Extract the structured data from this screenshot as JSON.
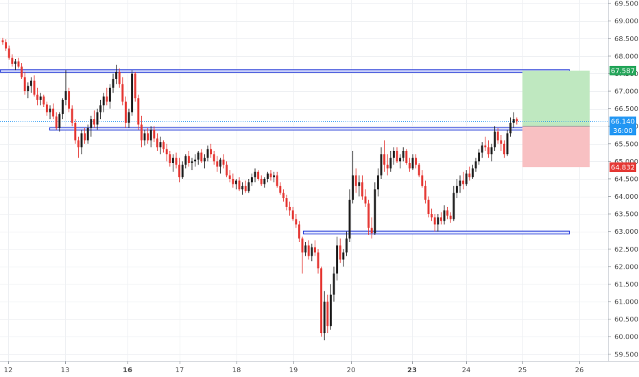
{
  "chart_data": {
    "type": "candlestick",
    "y_axis": {
      "min": 59.3,
      "max": 69.6,
      "side": "right",
      "ticks": [
        "59.500",
        "60.000",
        "60.500",
        "61.000",
        "61.500",
        "62.000",
        "62.500",
        "63.000",
        "63.500",
        "64.000",
        "64.500",
        "65.000",
        "65.500",
        "66.000",
        "66.500",
        "67.000",
        "67.500",
        "68.000",
        "68.500",
        "69.000",
        "69.500"
      ]
    },
    "x_axis": {
      "ticks": [
        {
          "label": "12",
          "bold": false
        },
        {
          "label": "13",
          "bold": false
        },
        {
          "label": "16",
          "bold": true
        },
        {
          "label": "17",
          "bold": false
        },
        {
          "label": "18",
          "bold": false
        },
        {
          "label": "19",
          "bold": false
        },
        {
          "label": "20",
          "bold": false
        },
        {
          "label": "23",
          "bold": true
        },
        {
          "label": "24",
          "bold": false
        },
        {
          "label": "25",
          "bold": false
        },
        {
          "label": "26",
          "bold": false
        }
      ]
    },
    "colors": {
      "up": "#222222",
      "down": "#e53935",
      "zone_border": "#2a3fd8",
      "zone_fill": "#dfe4ff",
      "target_fill": "#bfe8c0",
      "stop_fill": "#f8c0c2",
      "grid": "#eef0f3",
      "price_line": "#2196f3"
    },
    "zones": [
      {
        "top": 67.61,
        "bottom": 67.54
      },
      {
        "top": 65.96,
        "bottom": 65.89
      },
      {
        "top": 63.01,
        "bottom": 62.93
      }
    ],
    "position": {
      "entry": 66.0,
      "target": 67.587,
      "stop": 64.832
    },
    "badges": [
      {
        "label": "67.587",
        "price": 67.587,
        "color": "#26a65b"
      },
      {
        "label": "66.140",
        "price": 66.14,
        "color": "#2196f3"
      },
      {
        "label": "36:00",
        "price": 65.88,
        "color": "#2196f3"
      },
      {
        "label": "64.832",
        "price": 64.832,
        "color": "#e53935"
      }
    ],
    "last_price": 66.14,
    "candles": [
      [
        68.45,
        68.52,
        68.32,
        68.4
      ],
      [
        68.4,
        68.48,
        68.15,
        68.22
      ],
      [
        68.22,
        68.3,
        67.9,
        67.95
      ],
      [
        67.95,
        68.05,
        67.7,
        67.78
      ],
      [
        67.78,
        67.92,
        67.6,
        67.85
      ],
      [
        67.85,
        67.95,
        67.65,
        67.7
      ],
      [
        67.7,
        67.8,
        67.35,
        67.4
      ],
      [
        67.4,
        67.55,
        66.9,
        67.0
      ],
      [
        67.0,
        67.25,
        66.8,
        67.15
      ],
      [
        67.15,
        67.4,
        66.95,
        67.3
      ],
      [
        67.3,
        67.45,
        66.85,
        66.9
      ],
      [
        66.9,
        67.1,
        66.6,
        66.75
      ],
      [
        66.75,
        66.95,
        66.6,
        66.85
      ],
      [
        66.85,
        66.9,
        66.55,
        66.62
      ],
      [
        66.62,
        66.7,
        66.3,
        66.4
      ],
      [
        66.4,
        66.6,
        66.2,
        66.5
      ],
      [
        66.5,
        66.65,
        66.2,
        66.28
      ],
      [
        66.28,
        66.4,
        65.9,
        65.95
      ],
      [
        65.95,
        66.4,
        65.85,
        66.35
      ],
      [
        66.35,
        66.8,
        66.2,
        66.75
      ],
      [
        66.75,
        67.6,
        66.6,
        67.0
      ],
      [
        67.0,
        67.1,
        66.4,
        66.5
      ],
      [
        66.5,
        66.6,
        66.0,
        66.1
      ],
      [
        66.1,
        66.2,
        65.5,
        65.6
      ],
      [
        65.6,
        65.7,
        65.1,
        65.4
      ],
      [
        65.4,
        65.9,
        65.2,
        65.8
      ],
      [
        65.8,
        65.95,
        65.5,
        65.6
      ],
      [
        65.6,
        66.05,
        65.5,
        65.95
      ],
      [
        65.95,
        66.3,
        65.7,
        66.2
      ],
      [
        66.2,
        66.45,
        65.95,
        66.05
      ],
      [
        66.05,
        66.5,
        65.9,
        66.4
      ],
      [
        66.4,
        66.75,
        66.2,
        66.6
      ],
      [
        66.6,
        66.95,
        66.4,
        66.85
      ],
      [
        66.85,
        67.1,
        66.6,
        66.7
      ],
      [
        66.7,
        67.2,
        66.5,
        67.1
      ],
      [
        67.1,
        67.5,
        66.95,
        67.35
      ],
      [
        67.35,
        67.75,
        67.2,
        67.55
      ],
      [
        67.55,
        67.65,
        67.1,
        67.2
      ],
      [
        67.2,
        67.4,
        66.6,
        66.7
      ],
      [
        66.7,
        66.85,
        65.95,
        66.1
      ],
      [
        66.1,
        66.5,
        65.95,
        66.4
      ],
      [
        66.4,
        67.6,
        66.3,
        67.5
      ],
      [
        67.5,
        67.55,
        66.7,
        66.8
      ],
      [
        66.8,
        66.9,
        65.9,
        66.05
      ],
      [
        66.05,
        66.3,
        65.4,
        65.6
      ],
      [
        65.6,
        65.9,
        65.45,
        65.8
      ],
      [
        65.8,
        65.95,
        65.5,
        65.6
      ],
      [
        65.6,
        66.0,
        65.4,
        65.9
      ],
      [
        65.9,
        66.0,
        65.55,
        65.65
      ],
      [
        65.65,
        65.8,
        65.3,
        65.4
      ],
      [
        65.4,
        65.7,
        65.2,
        65.55
      ],
      [
        65.55,
        65.6,
        65.25,
        65.35
      ],
      [
        65.35,
        65.5,
        65.0,
        65.2
      ],
      [
        65.2,
        65.3,
        64.85,
        64.95
      ],
      [
        64.95,
        65.2,
        64.7,
        65.1
      ],
      [
        65.1,
        65.25,
        64.8,
        64.9
      ],
      [
        64.9,
        65.1,
        64.4,
        64.55
      ],
      [
        64.55,
        65.0,
        64.5,
        64.9
      ],
      [
        64.9,
        65.2,
        64.8,
        65.15
      ],
      [
        65.15,
        65.3,
        64.85,
        64.95
      ],
      [
        64.95,
        65.1,
        64.75,
        65.0
      ],
      [
        65.0,
        65.2,
        64.85,
        65.05
      ],
      [
        65.05,
        65.3,
        64.9,
        65.25
      ],
      [
        65.25,
        65.35,
        64.95,
        65.0
      ],
      [
        65.0,
        65.2,
        64.8,
        65.1
      ],
      [
        65.1,
        65.45,
        65.0,
        65.35
      ],
      [
        65.35,
        65.5,
        65.1,
        65.2
      ],
      [
        65.2,
        65.3,
        64.9,
        65.0
      ],
      [
        65.0,
        65.15,
        64.7,
        64.85
      ],
      [
        64.85,
        65.1,
        64.65,
        65.05
      ],
      [
        65.05,
        65.2,
        64.8,
        64.9
      ],
      [
        64.9,
        65.0,
        64.55,
        64.6
      ],
      [
        64.6,
        64.75,
        64.4,
        64.5
      ],
      [
        64.5,
        64.65,
        64.25,
        64.35
      ],
      [
        64.35,
        64.5,
        64.2,
        64.45
      ],
      [
        64.45,
        64.55,
        64.15,
        64.2
      ],
      [
        64.2,
        64.4,
        64.05,
        64.3
      ],
      [
        64.3,
        64.45,
        64.1,
        64.15
      ],
      [
        64.15,
        64.5,
        64.1,
        64.4
      ],
      [
        64.4,
        64.65,
        64.3,
        64.55
      ],
      [
        64.55,
        64.8,
        64.4,
        64.7
      ],
      [
        64.7,
        64.75,
        64.45,
        64.5
      ],
      [
        64.5,
        64.6,
        64.3,
        64.35
      ],
      [
        64.35,
        64.55,
        64.25,
        64.5
      ],
      [
        64.5,
        64.7,
        64.4,
        64.65
      ],
      [
        64.65,
        64.75,
        64.45,
        64.55
      ],
      [
        64.55,
        64.7,
        64.4,
        64.6
      ],
      [
        64.6,
        64.7,
        64.25,
        64.3
      ],
      [
        64.3,
        64.4,
        64.05,
        64.1
      ],
      [
        64.1,
        64.2,
        63.85,
        63.95
      ],
      [
        63.95,
        64.05,
        63.6,
        63.7
      ],
      [
        63.7,
        63.85,
        63.45,
        63.6
      ],
      [
        63.6,
        63.7,
        63.3,
        63.35
      ],
      [
        63.35,
        63.5,
        63.1,
        63.2
      ],
      [
        63.2,
        63.3,
        62.7,
        62.8
      ],
      [
        62.8,
        62.85,
        61.8,
        62.4
      ],
      [
        62.4,
        62.7,
        62.3,
        62.6
      ],
      [
        62.6,
        62.75,
        62.2,
        62.3
      ],
      [
        62.3,
        62.65,
        62.15,
        62.55
      ],
      [
        62.55,
        62.75,
        62.3,
        62.4
      ],
      [
        62.4,
        62.5,
        61.8,
        61.95
      ],
      [
        61.95,
        62.0,
        60.0,
        60.1
      ],
      [
        60.1,
        61.3,
        59.9,
        61.0
      ],
      [
        61.0,
        61.2,
        60.1,
        60.3
      ],
      [
        60.3,
        61.5,
        60.2,
        61.2
      ],
      [
        61.2,
        62.0,
        61.0,
        61.8
      ],
      [
        61.8,
        62.85,
        61.6,
        62.6
      ],
      [
        62.6,
        62.8,
        62.1,
        62.2
      ],
      [
        62.2,
        62.5,
        62.0,
        62.4
      ],
      [
        62.4,
        63.0,
        62.3,
        62.8
      ],
      [
        62.8,
        64.2,
        62.7,
        63.9
      ],
      [
        63.9,
        65.3,
        63.8,
        64.6
      ],
      [
        64.6,
        64.8,
        64.1,
        64.3
      ],
      [
        64.3,
        64.6,
        64.0,
        64.4
      ],
      [
        64.4,
        64.6,
        63.9,
        64.0
      ],
      [
        64.0,
        64.2,
        63.7,
        63.8
      ],
      [
        63.8,
        63.9,
        62.9,
        63.1
      ],
      [
        63.1,
        63.4,
        62.8,
        62.95
      ],
      [
        62.95,
        64.4,
        62.9,
        64.2
      ],
      [
        64.2,
        64.8,
        64.0,
        64.6
      ],
      [
        64.6,
        65.4,
        64.5,
        65.2
      ],
      [
        65.2,
        65.6,
        64.7,
        64.9
      ],
      [
        64.9,
        65.2,
        64.6,
        64.8
      ],
      [
        64.8,
        65.3,
        64.7,
        65.1
      ],
      [
        65.1,
        65.4,
        64.9,
        65.3
      ],
      [
        65.3,
        65.4,
        64.95,
        65.0
      ],
      [
        65.0,
        65.2,
        64.8,
        65.1
      ],
      [
        65.1,
        65.4,
        65.0,
        65.3
      ],
      [
        65.3,
        65.35,
        64.9,
        64.95
      ],
      [
        64.95,
        65.1,
        64.7,
        64.8
      ],
      [
        64.8,
        65.2,
        64.75,
        65.1
      ],
      [
        65.1,
        65.2,
        64.8,
        64.9
      ],
      [
        64.9,
        64.95,
        64.55,
        64.6
      ],
      [
        64.6,
        64.75,
        64.25,
        64.3
      ],
      [
        64.3,
        64.45,
        63.8,
        63.9
      ],
      [
        63.9,
        64.0,
        63.4,
        63.5
      ],
      [
        63.5,
        63.65,
        63.3,
        63.4
      ],
      [
        63.4,
        63.5,
        63.0,
        63.2
      ],
      [
        63.2,
        63.5,
        63.0,
        63.4
      ],
      [
        63.4,
        63.55,
        63.2,
        63.3
      ],
      [
        63.3,
        63.75,
        63.2,
        63.6
      ],
      [
        63.6,
        63.7,
        63.35,
        63.45
      ],
      [
        63.45,
        63.55,
        63.25,
        63.35
      ],
      [
        63.35,
        64.3,
        63.3,
        64.1
      ],
      [
        64.1,
        64.5,
        63.95,
        64.3
      ],
      [
        64.3,
        64.6,
        64.1,
        64.45
      ],
      [
        64.45,
        64.7,
        64.2,
        64.35
      ],
      [
        64.35,
        64.75,
        64.3,
        64.65
      ],
      [
        64.65,
        64.85,
        64.45,
        64.55
      ],
      [
        64.55,
        64.9,
        64.5,
        64.8
      ],
      [
        64.8,
        65.1,
        64.7,
        65.0
      ],
      [
        65.0,
        65.35,
        64.9,
        65.25
      ],
      [
        65.25,
        65.55,
        65.1,
        65.45
      ],
      [
        65.45,
        65.7,
        65.3,
        65.4
      ],
      [
        65.4,
        65.6,
        65.1,
        65.2
      ],
      [
        65.2,
        65.5,
        65.0,
        65.4
      ],
      [
        65.4,
        66.0,
        65.3,
        65.85
      ],
      [
        65.85,
        65.95,
        65.5,
        65.6
      ],
      [
        65.6,
        65.75,
        65.3,
        65.5
      ],
      [
        65.5,
        65.6,
        65.1,
        65.2
      ],
      [
        65.2,
        65.9,
        65.15,
        65.8
      ],
      [
        65.8,
        66.25,
        65.7,
        66.1
      ],
      [
        66.1,
        66.4,
        65.95,
        66.2
      ],
      [
        66.2,
        66.25,
        66.05,
        66.14
      ]
    ]
  }
}
